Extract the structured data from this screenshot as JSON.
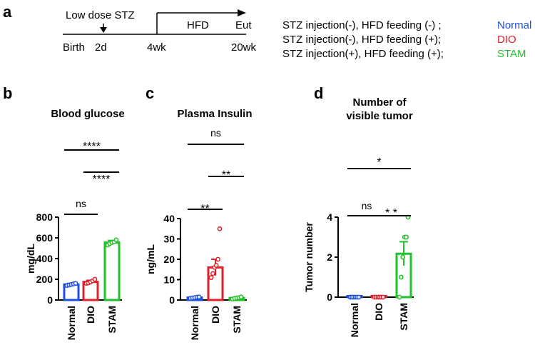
{
  "panels": {
    "a": "a",
    "b": "b",
    "c": "c",
    "d": "d"
  },
  "timeline": {
    "stz_label": "Low dose STZ",
    "hfd_label": "HFD",
    "eut_label": "Eut",
    "ticks": [
      "Birth",
      "2d",
      "4wk",
      "20wk"
    ]
  },
  "groups": [
    {
      "desc": "STZ injection(-), HFD feeding (-) ;",
      "name": "Normal",
      "color": "#1f4fe0"
    },
    {
      "desc": "STZ injection(-), HFD feeding (+);",
      "name": "DIO",
      "color": "#e0202a"
    },
    {
      "desc": "STZ injection(+), HFD feeding (+);",
      "name": "STAM",
      "color": "#22c02a"
    }
  ],
  "chart_data": [
    {
      "type": "bar",
      "title": "Blood glucose",
      "ylabel": "mg/dL",
      "categories": [
        "Normal",
        "DIO",
        "STAM"
      ],
      "values": [
        150,
        175,
        555
      ],
      "errors": [
        10,
        15,
        20
      ],
      "points": [
        [
          140,
          145,
          150,
          155,
          160
        ],
        [
          160,
          165,
          175,
          185,
          200
        ],
        [
          530,
          545,
          555,
          560,
          580
        ]
      ],
      "ylim": [
        0,
        800
      ],
      "yticks": [
        0,
        200,
        400,
        600,
        800
      ],
      "ytick_labels": [
        "0",
        "200",
        "400",
        "600",
        "800"
      ],
      "significance": [
        {
          "pair": [
            0,
            1
          ],
          "label": "ns"
        },
        {
          "pair": [
            1,
            2
          ],
          "label": "****"
        },
        {
          "pair": [
            0,
            2
          ],
          "label": "****"
        }
      ]
    },
    {
      "type": "bar",
      "title": "Plasma Insulin",
      "ylabel": "ng/mL",
      "categories": [
        "Normal",
        "DIO",
        "STAM"
      ],
      "values": [
        1.2,
        16,
        1.0
      ],
      "errors": [
        0.3,
        4,
        0.3
      ],
      "points": [
        [
          0.8,
          1.0,
          1.2,
          1.4,
          1.5
        ],
        [
          11,
          13,
          16,
          17,
          20,
          35
        ],
        [
          0.5,
          0.8,
          1.0,
          1.2,
          1.5
        ]
      ],
      "ylim": [
        0,
        40
      ],
      "yticks": [
        0,
        10,
        20,
        30,
        40
      ],
      "ytick_labels": [
        "0",
        "10",
        "20",
        "30",
        "40"
      ],
      "significance": [
        {
          "pair": [
            0,
            1
          ],
          "label": "**"
        },
        {
          "pair": [
            1,
            2
          ],
          "label": "**"
        },
        {
          "pair": [
            0,
            2
          ],
          "label": "ns"
        }
      ]
    },
    {
      "type": "bar",
      "title": "Number of visible tumor",
      "title_lines": [
        "Number of",
        "visible tumor"
      ],
      "ylabel": "Tumor number",
      "categories": [
        "Normal",
        "DIO",
        "STAM"
      ],
      "values": [
        0,
        0,
        2.17
      ],
      "errors": [
        0,
        0,
        0.6
      ],
      "points": [
        [
          0,
          0,
          0,
          0,
          0,
          0
        ],
        [
          0,
          0,
          0,
          0,
          0,
          0
        ],
        [
          0,
          1,
          2,
          3,
          3,
          4
        ]
      ],
      "ylim": [
        0,
        4
      ],
      "yticks": [
        0,
        2,
        4
      ],
      "ytick_labels": [
        "0",
        "2",
        "4"
      ],
      "significance": [
        {
          "pair": [
            0,
            1
          ],
          "label": "ns"
        },
        {
          "pair": [
            1,
            2
          ],
          "label": "* *"
        },
        {
          "pair": [
            0,
            2
          ],
          "label": "*"
        }
      ]
    }
  ]
}
